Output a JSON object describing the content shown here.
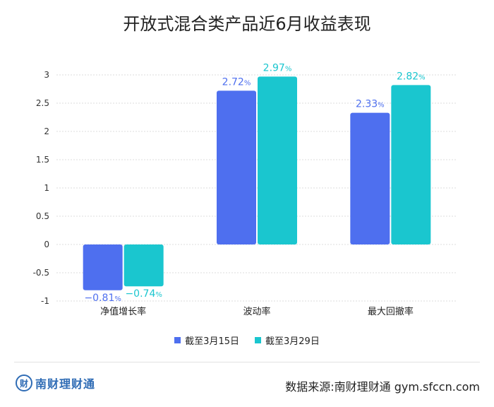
{
  "title": "开放式混合类产品近6月收益表现",
  "chart_data": {
    "type": "bar",
    "categories": [
      "净值增长率",
      "波动率",
      "最大回撤率"
    ],
    "series": [
      {
        "name": "截至3月15日",
        "values": [
          -0.81,
          2.72,
          2.33
        ],
        "labels": [
          "−0.81",
          "2.72",
          "2.33"
        ],
        "color": "#4e6fef"
      },
      {
        "name": "截至3月29日",
        "values": [
          -0.74,
          2.97,
          2.82
        ],
        "labels": [
          "−0.74",
          "2.97",
          "2.82"
        ],
        "color": "#1ac6cf"
      }
    ],
    "unit": "%",
    "ylim": [
      -1,
      3
    ],
    "yticks": [
      -1,
      -0.5,
      0,
      0.5,
      1,
      1.5,
      2,
      2.5,
      3
    ],
    "ytick_labels": [
      "-1",
      "-0.5",
      "0",
      "0.5",
      "1",
      "1.5",
      "2",
      "2.5",
      "3"
    ],
    "grid": true,
    "legend_position": "bottom"
  },
  "footer": {
    "logo_text": "南财理财通",
    "logo_mark": "财",
    "source": "数据来源:南财理财通  gym.sfccn.com"
  }
}
